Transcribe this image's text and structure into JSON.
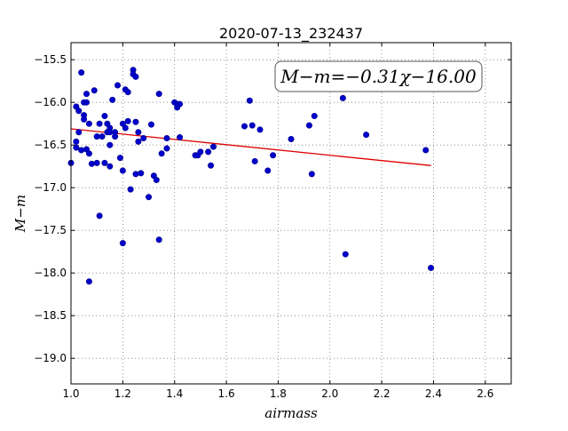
{
  "chart_data": {
    "type": "scatter",
    "title": "2020-07-13_232437",
    "xlabel": "airmass",
    "ylabel": "M−m",
    "xlim": [
      1.0,
      2.7
    ],
    "ylim": [
      -19.3,
      -15.3
    ],
    "y_inverted": true,
    "grid": true,
    "xticks": [
      "1.0",
      "1.2",
      "1.4",
      "1.6",
      "1.8",
      "2.0",
      "2.2",
      "2.4",
      "2.6"
    ],
    "yticks": [
      "−15.5",
      "−16.0",
      "−16.5",
      "−17.0",
      "−17.5",
      "−18.0",
      "−18.5",
      "−19.0"
    ],
    "annotation": "M−m=−0.31χ−16.00",
    "point_color": "#0000cc",
    "fit_color": "#dd0000",
    "fit": {
      "slope": -0.31,
      "intercept": -16.0,
      "x_range": [
        1.0,
        2.39
      ]
    },
    "points": [
      [
        1.0,
        -16.71
      ],
      [
        1.02,
        -16.46
      ],
      [
        1.02,
        -16.53
      ],
      [
        1.02,
        -16.05
      ],
      [
        1.03,
        -16.1
      ],
      [
        1.03,
        -16.35
      ],
      [
        1.04,
        -15.65
      ],
      [
        1.04,
        -16.56
      ],
      [
        1.05,
        -16.15
      ],
      [
        1.05,
        -16.2
      ],
      [
        1.05,
        -16.0
      ],
      [
        1.06,
        -15.9
      ],
      [
        1.06,
        -16.55
      ],
      [
        1.06,
        -16.0
      ],
      [
        1.07,
        -16.25
      ],
      [
        1.07,
        -16.6
      ],
      [
        1.07,
        -18.1
      ],
      [
        1.08,
        -16.72
      ],
      [
        1.09,
        -15.86
      ],
      [
        1.1,
        -16.71
      ],
      [
        1.1,
        -16.4
      ],
      [
        1.11,
        -16.25
      ],
      [
        1.11,
        -17.33
      ],
      [
        1.12,
        -16.4
      ],
      [
        1.13,
        -16.16
      ],
      [
        1.13,
        -16.71
      ],
      [
        1.14,
        -16.25
      ],
      [
        1.14,
        -16.35
      ],
      [
        1.15,
        -16.3
      ],
      [
        1.15,
        -16.35
      ],
      [
        1.15,
        -16.5
      ],
      [
        1.15,
        -16.75
      ],
      [
        1.16,
        -15.97
      ],
      [
        1.17,
        -16.4
      ],
      [
        1.17,
        -16.35
      ],
      [
        1.18,
        -15.8
      ],
      [
        1.19,
        -16.65
      ],
      [
        1.2,
        -17.65
      ],
      [
        1.2,
        -16.8
      ],
      [
        1.2,
        -16.25
      ],
      [
        1.21,
        -16.3
      ],
      [
        1.21,
        -15.85
      ],
      [
        1.22,
        -15.88
      ],
      [
        1.22,
        -16.22
      ],
      [
        1.23,
        -17.02
      ],
      [
        1.24,
        -15.62
      ],
      [
        1.24,
        -15.67
      ],
      [
        1.25,
        -15.7
      ],
      [
        1.25,
        -16.23
      ],
      [
        1.25,
        -16.84
      ],
      [
        1.26,
        -16.35
      ],
      [
        1.26,
        -16.46
      ],
      [
        1.27,
        -16.83
      ],
      [
        1.28,
        -16.42
      ],
      [
        1.3,
        -17.11
      ],
      [
        1.31,
        -16.26
      ],
      [
        1.32,
        -16.86
      ],
      [
        1.33,
        -16.91
      ],
      [
        1.34,
        -17.61
      ],
      [
        1.34,
        -15.9
      ],
      [
        1.35,
        -16.6
      ],
      [
        1.37,
        -16.42
      ],
      [
        1.37,
        -16.54
      ],
      [
        1.4,
        -16.0
      ],
      [
        1.41,
        -16.06
      ],
      [
        1.41,
        -16.02
      ],
      [
        1.42,
        -16.02
      ],
      [
        1.42,
        -16.41
      ],
      [
        1.48,
        -16.62
      ],
      [
        1.49,
        -16.62
      ],
      [
        1.5,
        -16.58
      ],
      [
        1.53,
        -16.58
      ],
      [
        1.54,
        -16.74
      ],
      [
        1.55,
        -16.52
      ],
      [
        1.67,
        -16.28
      ],
      [
        1.69,
        -15.98
      ],
      [
        1.7,
        -16.27
      ],
      [
        1.71,
        -16.69
      ],
      [
        1.73,
        -16.32
      ],
      [
        1.76,
        -16.8
      ],
      [
        1.78,
        -16.62
      ],
      [
        1.85,
        -16.43
      ],
      [
        1.92,
        -16.27
      ],
      [
        1.93,
        -16.84
      ],
      [
        1.94,
        -16.16
      ],
      [
        2.05,
        -15.95
      ],
      [
        2.06,
        -17.78
      ],
      [
        2.14,
        -16.38
      ],
      [
        2.37,
        -16.56
      ],
      [
        2.39,
        -17.94
      ]
    ]
  }
}
